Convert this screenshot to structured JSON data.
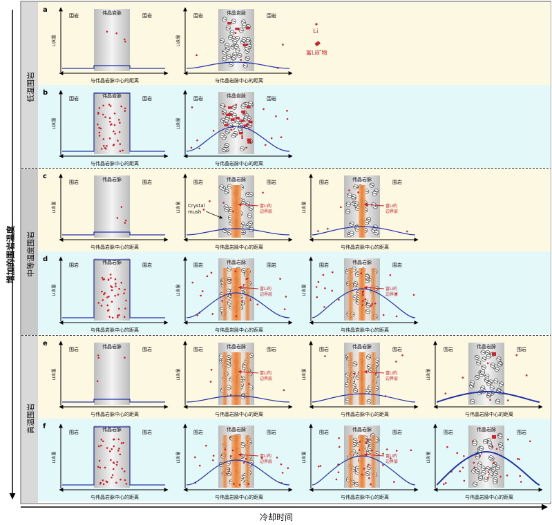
{
  "axis_titles": {
    "y": "增加的围岩温度",
    "x": "冷却时间"
  },
  "groups": {
    "low": "低温围岩",
    "medium": "中等温度围岩",
    "high": "高温围岩"
  },
  "labels": {
    "wall_rock": "围岩",
    "pegmatite_dike": "伟晶岩脉",
    "li_content": "Li含量",
    "x_axis": "与伟晶岩脉中心的距离",
    "boundary_layer": "富Li的边界层",
    "crystal_mush": "Crystal mush"
  },
  "legend": {
    "li": "Li",
    "li_mineral": "富Li矿物"
  },
  "rows": [
    {
      "tag": "a",
      "panels": 2
    },
    {
      "tag": "b",
      "panels": 2
    },
    {
      "tag": "c",
      "panels": 3
    },
    {
      "tag": "d",
      "panels": 3
    },
    {
      "tag": "e",
      "panels": 4
    },
    {
      "tag": "f",
      "panels": 4
    }
  ],
  "colors": {
    "yellow_band": "#fdf8e2",
    "cyan_band": "#e3f8f8",
    "side_strip": "#d9d9d9",
    "dike": "#d7d7d7",
    "li_dot": "#c8242b",
    "curve": "#2030a8",
    "boundary": "#f39a52"
  }
}
